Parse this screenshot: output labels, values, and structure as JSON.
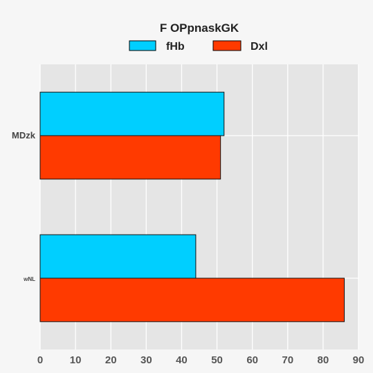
{
  "chart_data": {
    "type": "bar",
    "orientation": "horizontal",
    "title": "F  OPpnaskGK",
    "categories": [
      "MDzk",
      "wNL"
    ],
    "series": [
      {
        "name": "fHb",
        "values": [
          52,
          44
        ],
        "color": "#00cfff"
      },
      {
        "name": "Dxl",
        "values": [
          51,
          86
        ],
        "color": "#ff3a00"
      }
    ],
    "xlim": [
      0,
      90
    ],
    "xticks": [
      0,
      10,
      20,
      30,
      40,
      50,
      60,
      70,
      80,
      90
    ],
    "grid": true,
    "legend_position": "top-center",
    "plot_background": "#e5e5e5"
  }
}
